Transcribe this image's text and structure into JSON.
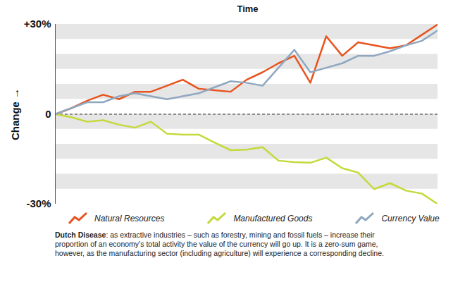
{
  "chart_data": {
    "type": "line",
    "title": "Time",
    "y_label": "Change",
    "x": [
      0,
      1,
      2,
      3,
      4,
      5,
      6,
      7,
      8,
      9,
      10,
      11,
      12,
      13,
      14,
      15,
      16,
      17,
      18,
      19,
      20,
      21,
      22,
      23,
      24
    ],
    "xlim": [
      0,
      24
    ],
    "ylim": [
      -30,
      30
    ],
    "yticks": [
      {
        "value": 30,
        "label": "+30%"
      },
      0,
      {
        "value": -30,
        "label": "-30%"
      }
    ],
    "tick_labels": "y",
    "grid": true,
    "series": [
      {
        "name": "Natural Resources",
        "color": "#e8541e",
        "values": [
          0,
          2,
          4.5,
          6.5,
          5,
          7.5,
          7.5,
          9.5,
          11.5,
          8.5,
          8,
          7.5,
          11.5,
          14,
          17,
          19.5,
          10.5,
          26,
          19.5,
          24,
          23,
          22,
          23,
          26.5,
          30
        ]
      },
      {
        "name": "Manufactured Goods",
        "color": "#c4d93a",
        "values": [
          0,
          -1,
          -2.5,
          -2,
          -3.5,
          -4.5,
          -2.5,
          -6.5,
          -6.8,
          -6.8,
          -9.5,
          -12,
          -11.8,
          -11,
          -15.5,
          -16,
          -16.2,
          -14.5,
          -18,
          -19.5,
          -25,
          -23,
          -25.5,
          -26.5,
          -30
        ]
      },
      {
        "name": "Currency Value",
        "color": "#8fa8c0",
        "values": [
          0,
          2,
          4,
          4,
          6,
          7,
          6,
          5,
          6,
          7,
          9,
          11,
          10.5,
          9.5,
          15.5,
          21.5,
          14,
          15.5,
          17,
          19.5,
          19.5,
          21,
          23,
          24.5,
          28
        ]
      }
    ],
    "caption": "Dutch Disease: as extractive industries – such as forestry, mining and fossil fuels – increase their proportion of an economy’s total activity the value of the currency will go up. It is a zero-sum game, however, as the manufacturing sector (including agriculture) will experience a corresponding decline."
  }
}
